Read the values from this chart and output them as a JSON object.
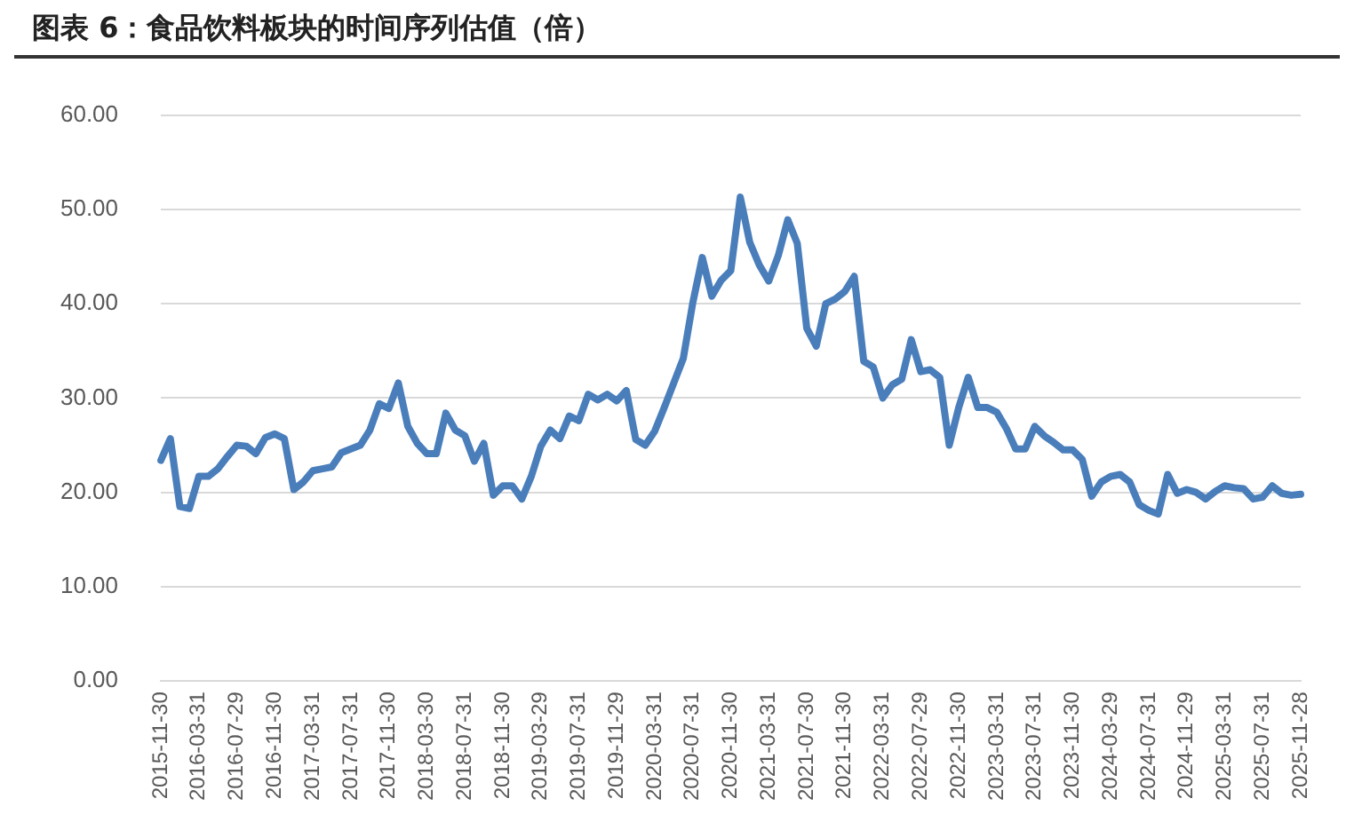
{
  "chart_data": {
    "type": "line",
    "title": "图表 6：食品饮料板块的时间序列估值（倍）",
    "categories": [
      "2015-11-30",
      null,
      null,
      null,
      "2016-03-31",
      null,
      null,
      null,
      "2016-07-29",
      null,
      null,
      null,
      "2016-11-30",
      null,
      null,
      null,
      "2017-03-31",
      null,
      null,
      null,
      "2017-07-31",
      null,
      null,
      null,
      "2017-11-30",
      null,
      null,
      null,
      "2018-03-30",
      null,
      null,
      null,
      "2018-07-31",
      null,
      null,
      null,
      "2018-11-30",
      null,
      null,
      null,
      "2019-03-29",
      null,
      null,
      null,
      "2019-07-31",
      null,
      null,
      null,
      "2019-11-29",
      null,
      null,
      null,
      "2020-03-31",
      null,
      null,
      null,
      "2020-07-31",
      null,
      null,
      null,
      "2020-11-30",
      null,
      null,
      null,
      "2021-03-31",
      null,
      null,
      null,
      "2021-07-30",
      null,
      null,
      null,
      "2021-11-30",
      null,
      null,
      null,
      "2022-03-31",
      null,
      null,
      null,
      "2022-07-29",
      null,
      null,
      null,
      "2022-11-30",
      null,
      null,
      null,
      "2023-03-31",
      null,
      null,
      null,
      "2023-07-31",
      null,
      null,
      null,
      "2023-11-30",
      null,
      null,
      null,
      "2024-03-29",
      null,
      null,
      null,
      "2024-07-31",
      null,
      null,
      null,
      "2024-11-29",
      null,
      null,
      null,
      "2025-03-31",
      null,
      null,
      null,
      "2025-07-31",
      null,
      null,
      null,
      "2025-11-28"
    ],
    "series": [
      {
        "color": "#4a7ebb",
        "values": [
          23.4,
          25.7,
          18.5,
          18.3,
          21.7,
          21.7,
          22.5,
          23.8,
          25.0,
          24.9,
          24.1,
          25.8,
          26.2,
          25.7,
          20.3,
          21.1,
          22.3,
          22.5,
          22.7,
          24.2,
          24.6,
          25.0,
          26.6,
          29.4,
          28.9,
          31.6,
          27.0,
          25.2,
          24.1,
          24.1,
          28.4,
          26.6,
          26.0,
          23.3,
          25.2,
          19.7,
          20.7,
          20.7,
          19.3,
          21.7,
          24.9,
          26.6,
          25.7,
          28.1,
          27.6,
          30.4,
          29.8,
          30.4,
          29.7,
          30.8,
          25.6,
          25.0,
          26.5,
          29.0,
          31.6,
          34.2,
          40.1,
          44.9,
          40.8,
          42.5,
          43.5,
          51.3,
          46.5,
          44.1,
          42.4,
          45.1,
          48.9,
          46.4,
          37.4,
          35.5,
          40.0,
          40.5,
          41.3,
          42.9,
          33.9,
          33.3,
          30.0,
          31.4,
          32.0,
          36.2,
          32.8,
          33.0,
          32.2,
          25.0,
          29.0,
          32.2,
          29.0,
          29.0,
          28.5,
          26.8,
          24.6,
          24.6,
          27.0,
          26.0,
          25.3,
          24.5,
          24.5,
          23.5,
          19.6,
          21.1,
          21.7,
          21.9,
          21.1,
          18.7,
          18.1,
          17.7,
          21.9,
          19.9,
          20.3,
          20.0,
          19.3,
          20.1,
          20.7,
          20.5,
          20.4,
          19.3,
          19.5,
          20.7,
          19.9,
          19.7,
          19.8
        ]
      }
    ],
    "ylim": [
      0,
      60
    ],
    "yticks": [
      {
        "value": 0,
        "label": "0.00"
      },
      {
        "value": 10,
        "label": "10.00"
      },
      {
        "value": 20,
        "label": "20.00"
      },
      {
        "value": 30,
        "label": "30.00"
      },
      {
        "value": 40,
        "label": "40.00"
      },
      {
        "value": 50,
        "label": "50.00"
      },
      {
        "value": 60,
        "label": "60.00"
      }
    ],
    "grid": "y",
    "legend": false,
    "marker": "none",
    "line_style": "solid"
  }
}
